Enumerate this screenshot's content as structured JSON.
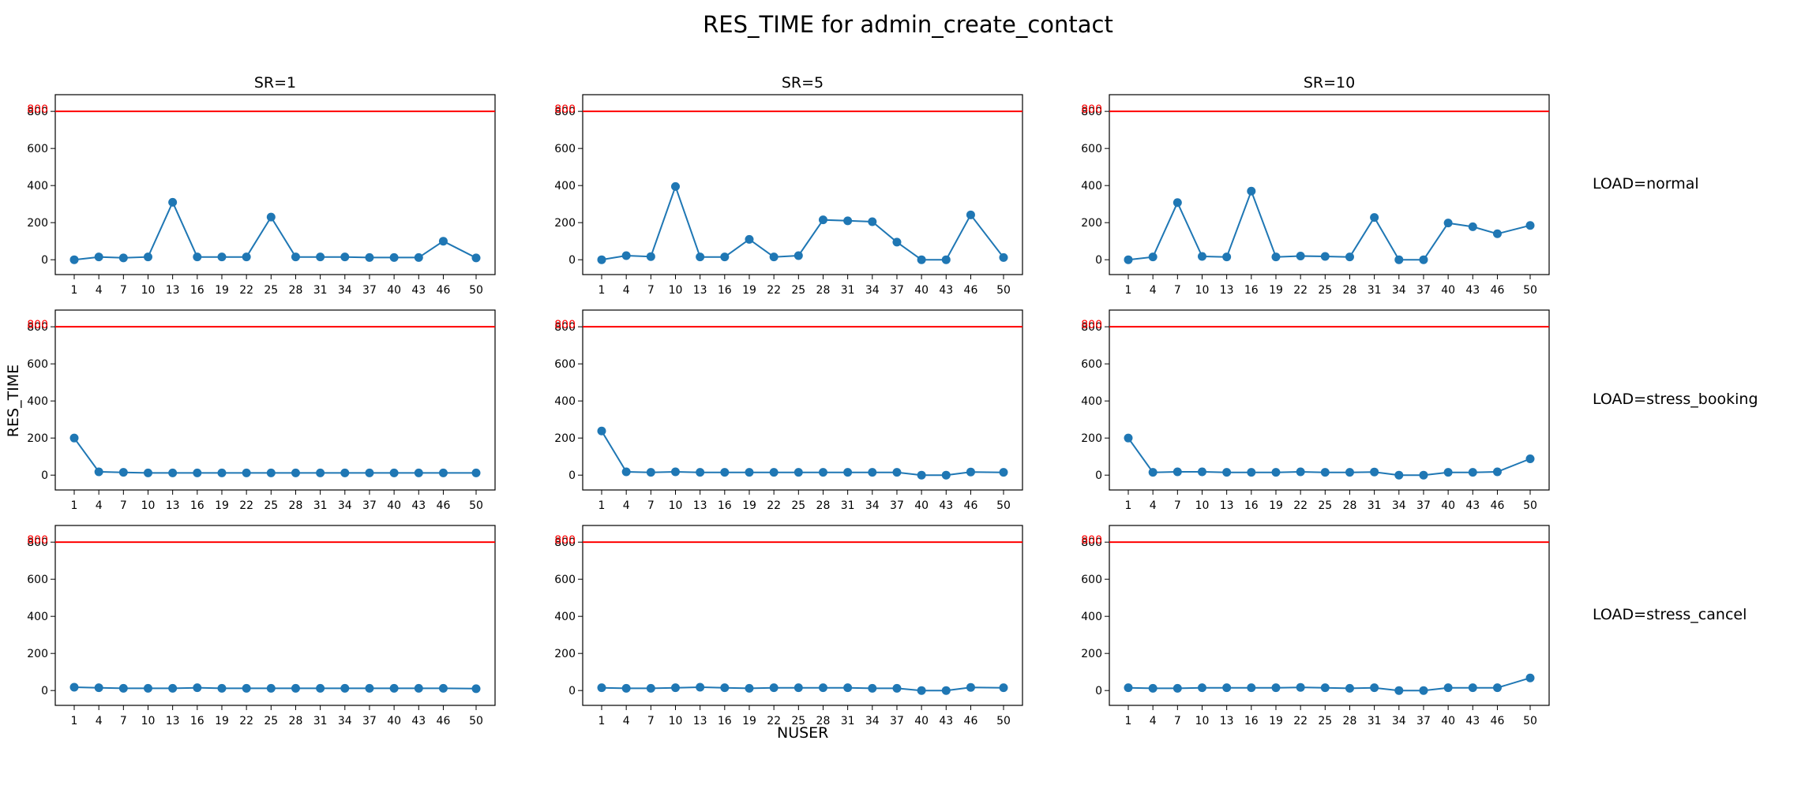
{
  "figure": {
    "title": "RES_TIME for admin_create_contact",
    "xlabel": "NUSER",
    "ylabel": "RES_TIME",
    "row_labels": [
      "LOAD=normal",
      "LOAD=stress_booking",
      "LOAD=stress_cancel"
    ],
    "col_labels": [
      "SR=1",
      "SR=5",
      "SR=10"
    ]
  },
  "chart_data": [
    {
      "type": "line",
      "title": "SR=1",
      "row": "LOAD=normal",
      "x": [
        1,
        4,
        7,
        10,
        13,
        16,
        19,
        22,
        25,
        28,
        31,
        34,
        37,
        40,
        43,
        46,
        50
      ],
      "series": [
        {
          "values": [
            0,
            15,
            10,
            15,
            310,
            15,
            15,
            15,
            230,
            15,
            15,
            15,
            12,
            12,
            12,
            100,
            10
          ],
          "color": "#1f77b4"
        }
      ],
      "threshold": {
        "value": 800,
        "color": "#ff0000"
      },
      "yticks": [
        0,
        200,
        400,
        600,
        800
      ],
      "ylim": [
        -80,
        890
      ],
      "xticks": [
        1,
        4,
        7,
        10,
        13,
        16,
        19,
        22,
        25,
        28,
        31,
        34,
        37,
        40,
        43,
        46,
        50
      ]
    },
    {
      "type": "line",
      "title": "SR=5",
      "row": "LOAD=normal",
      "x": [
        1,
        4,
        7,
        10,
        13,
        16,
        19,
        22,
        25,
        28,
        31,
        34,
        37,
        40,
        43,
        46,
        50
      ],
      "series": [
        {
          "values": [
            0,
            22,
            17,
            395,
            15,
            15,
            110,
            15,
            22,
            215,
            210,
            205,
            95,
            0,
            0,
            242,
            12
          ],
          "color": "#1f77b4"
        }
      ],
      "threshold": {
        "value": 800,
        "color": "#ff0000"
      },
      "yticks": [
        0,
        200,
        400,
        600,
        800
      ],
      "ylim": [
        -80,
        890
      ],
      "xticks": [
        1,
        4,
        7,
        10,
        13,
        16,
        19,
        22,
        25,
        28,
        31,
        34,
        37,
        40,
        43,
        46,
        50
      ]
    },
    {
      "type": "line",
      "title": "SR=10",
      "row": "LOAD=normal",
      "x": [
        1,
        4,
        7,
        10,
        13,
        16,
        19,
        22,
        25,
        28,
        31,
        34,
        37,
        40,
        43,
        46,
        50
      ],
      "series": [
        {
          "values": [
            0,
            15,
            308,
            18,
            15,
            370,
            15,
            20,
            18,
            15,
            228,
            0,
            0,
            198,
            178,
            140,
            185
          ],
          "color": "#1f77b4"
        }
      ],
      "threshold": {
        "value": 800,
        "color": "#ff0000"
      },
      "yticks": [
        0,
        200,
        400,
        600,
        800
      ],
      "ylim": [
        -80,
        890
      ],
      "xticks": [
        1,
        4,
        7,
        10,
        13,
        16,
        19,
        22,
        25,
        28,
        31,
        34,
        37,
        40,
        43,
        46,
        50
      ]
    },
    {
      "type": "line",
      "title": "",
      "row": "LOAD=stress_booking",
      "x": [
        1,
        4,
        7,
        10,
        13,
        16,
        19,
        22,
        25,
        28,
        31,
        34,
        37,
        40,
        43,
        46,
        50
      ],
      "series": [
        {
          "values": [
            200,
            18,
            15,
            12,
            12,
            12,
            12,
            12,
            12,
            12,
            12,
            12,
            12,
            12,
            12,
            12,
            12
          ],
          "color": "#1f77b4"
        }
      ],
      "threshold": {
        "value": 800,
        "color": "#ff0000"
      },
      "yticks": [
        0,
        200,
        400,
        600,
        800
      ],
      "ylim": [
        -80,
        890
      ],
      "xticks": [
        1,
        4,
        7,
        10,
        13,
        16,
        19,
        22,
        25,
        28,
        31,
        34,
        37,
        40,
        43,
        46,
        50
      ]
    },
    {
      "type": "line",
      "title": "",
      "row": "LOAD=stress_booking",
      "x": [
        1,
        4,
        7,
        10,
        13,
        16,
        19,
        22,
        25,
        28,
        31,
        34,
        37,
        40,
        43,
        46,
        50
      ],
      "series": [
        {
          "values": [
            238,
            18,
            15,
            18,
            15,
            15,
            15,
            15,
            15,
            15,
            15,
            15,
            15,
            0,
            0,
            17,
            15
          ],
          "color": "#1f77b4"
        }
      ],
      "threshold": {
        "value": 800,
        "color": "#ff0000"
      },
      "yticks": [
        0,
        200,
        400,
        600,
        800
      ],
      "ylim": [
        -80,
        890
      ],
      "xticks": [
        1,
        4,
        7,
        10,
        13,
        16,
        19,
        22,
        25,
        28,
        31,
        34,
        37,
        40,
        43,
        46,
        50
      ]
    },
    {
      "type": "line",
      "title": "",
      "row": "LOAD=stress_booking",
      "x": [
        1,
        4,
        7,
        10,
        13,
        16,
        19,
        22,
        25,
        28,
        31,
        34,
        37,
        40,
        43,
        46,
        50
      ],
      "series": [
        {
          "values": [
            200,
            15,
            18,
            18,
            15,
            15,
            15,
            18,
            15,
            15,
            17,
            0,
            0,
            15,
            15,
            18,
            88
          ],
          "color": "#1f77b4"
        }
      ],
      "threshold": {
        "value": 800,
        "color": "#ff0000"
      },
      "yticks": [
        0,
        200,
        400,
        600,
        800
      ],
      "ylim": [
        -80,
        890
      ],
      "xticks": [
        1,
        4,
        7,
        10,
        13,
        16,
        19,
        22,
        25,
        28,
        31,
        34,
        37,
        40,
        43,
        46,
        50
      ]
    },
    {
      "type": "line",
      "title": "",
      "row": "LOAD=stress_cancel",
      "x": [
        1,
        4,
        7,
        10,
        13,
        16,
        19,
        22,
        25,
        28,
        31,
        34,
        37,
        40,
        43,
        46,
        50
      ],
      "series": [
        {
          "values": [
            18,
            15,
            12,
            12,
            12,
            15,
            12,
            12,
            12,
            12,
            12,
            12,
            12,
            12,
            12,
            12,
            10
          ],
          "color": "#1f77b4"
        }
      ],
      "threshold": {
        "value": 800,
        "color": "#ff0000"
      },
      "yticks": [
        0,
        200,
        400,
        600,
        800
      ],
      "ylim": [
        -80,
        890
      ],
      "xticks": [
        1,
        4,
        7,
        10,
        13,
        16,
        19,
        22,
        25,
        28,
        31,
        34,
        37,
        40,
        43,
        46,
        50
      ]
    },
    {
      "type": "line",
      "title": "",
      "row": "LOAD=stress_cancel",
      "x": [
        1,
        4,
        7,
        10,
        13,
        16,
        19,
        22,
        25,
        28,
        31,
        34,
        37,
        40,
        43,
        46,
        50
      ],
      "series": [
        {
          "values": [
            15,
            12,
            12,
            15,
            18,
            15,
            12,
            15,
            15,
            15,
            15,
            12,
            12,
            0,
            0,
            17,
            15
          ],
          "color": "#1f77b4"
        }
      ],
      "threshold": {
        "value": 800,
        "color": "#ff0000"
      },
      "yticks": [
        0,
        200,
        400,
        600,
        800
      ],
      "ylim": [
        -80,
        890
      ],
      "xticks": [
        1,
        4,
        7,
        10,
        13,
        16,
        19,
        22,
        25,
        28,
        31,
        34,
        37,
        40,
        43,
        46,
        50
      ]
    },
    {
      "type": "line",
      "title": "",
      "row": "LOAD=stress_cancel",
      "x": [
        1,
        4,
        7,
        10,
        13,
        16,
        19,
        22,
        25,
        28,
        31,
        34,
        37,
        40,
        43,
        46,
        50
      ],
      "series": [
        {
          "values": [
            15,
            12,
            12,
            15,
            15,
            15,
            15,
            17,
            15,
            12,
            15,
            0,
            0,
            15,
            15,
            15,
            68
          ],
          "color": "#1f77b4"
        }
      ],
      "threshold": {
        "value": 800,
        "color": "#ff0000"
      },
      "yticks": [
        0,
        200,
        400,
        600,
        800
      ],
      "ylim": [
        -80,
        890
      ],
      "xticks": [
        1,
        4,
        7,
        10,
        13,
        16,
        19,
        22,
        25,
        28,
        31,
        34,
        37,
        40,
        43,
        46,
        50
      ]
    }
  ]
}
